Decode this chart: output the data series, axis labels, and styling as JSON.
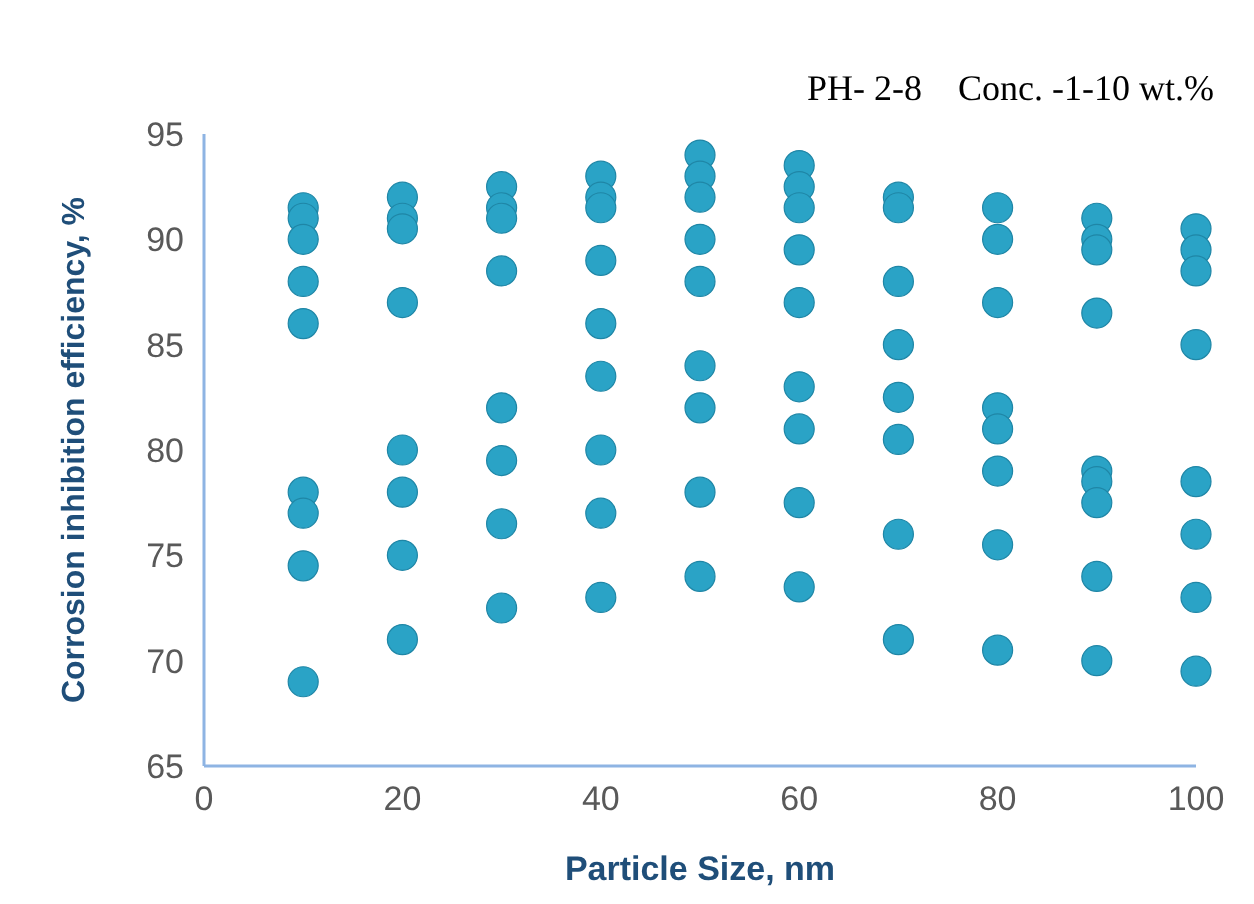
{
  "chart_data": {
    "type": "scatter",
    "title": "PH- 2-8    Conc. -1-10 wt.%",
    "xlabel": "Particle Size, nm",
    "ylabel": "Corrosion inhibition efficiency, %",
    "xlim": [
      0,
      100
    ],
    "xticks": [
      0,
      20,
      40,
      60,
      80,
      100
    ],
    "ylim": [
      65,
      95
    ],
    "yticks": [
      65,
      70,
      75,
      80,
      85,
      90,
      95
    ],
    "grid": false,
    "marker": "circle",
    "series": [
      {
        "color": "#2aa3c6",
        "x": [
          10,
          10,
          10,
          10,
          10,
          10,
          10,
          10,
          10,
          20,
          20,
          20,
          20,
          20,
          20,
          20,
          20,
          30,
          30,
          30,
          30,
          30,
          30,
          30,
          30,
          40,
          40,
          40,
          40,
          40,
          40,
          40,
          40,
          40,
          50,
          50,
          50,
          50,
          50,
          50,
          50,
          50,
          50,
          60,
          60,
          60,
          60,
          60,
          60,
          60,
          60,
          60,
          70,
          70,
          70,
          70,
          70,
          70,
          70,
          70,
          80,
          80,
          80,
          80,
          80,
          80,
          80,
          80,
          90,
          90,
          90,
          90,
          90,
          90,
          90,
          90,
          90,
          100,
          100,
          100,
          100,
          100,
          100,
          100,
          100
        ],
        "values": [
          91.5,
          91,
          90,
          88,
          86,
          78,
          77,
          74.5,
          69,
          92,
          91,
          90.5,
          87,
          80,
          78,
          75,
          71,
          92.5,
          91.5,
          91,
          88.5,
          82,
          79.5,
          76.5,
          72.5,
          93,
          92,
          91.5,
          89,
          86,
          83.5,
          80,
          77,
          73,
          94,
          93,
          92,
          90,
          88,
          84,
          82,
          78,
          74,
          93.5,
          92.5,
          91.5,
          89.5,
          87,
          83,
          81,
          77.5,
          73.5,
          92,
          91.5,
          88,
          85,
          82.5,
          80.5,
          76,
          71,
          91.5,
          90,
          87,
          82,
          81,
          79,
          75.5,
          70.5,
          91,
          90,
          89.5,
          86.5,
          79,
          78.5,
          77.5,
          74,
          70,
          90.5,
          89.5,
          88.5,
          85,
          78.5,
          76,
          73,
          69.5
        ]
      }
    ]
  }
}
